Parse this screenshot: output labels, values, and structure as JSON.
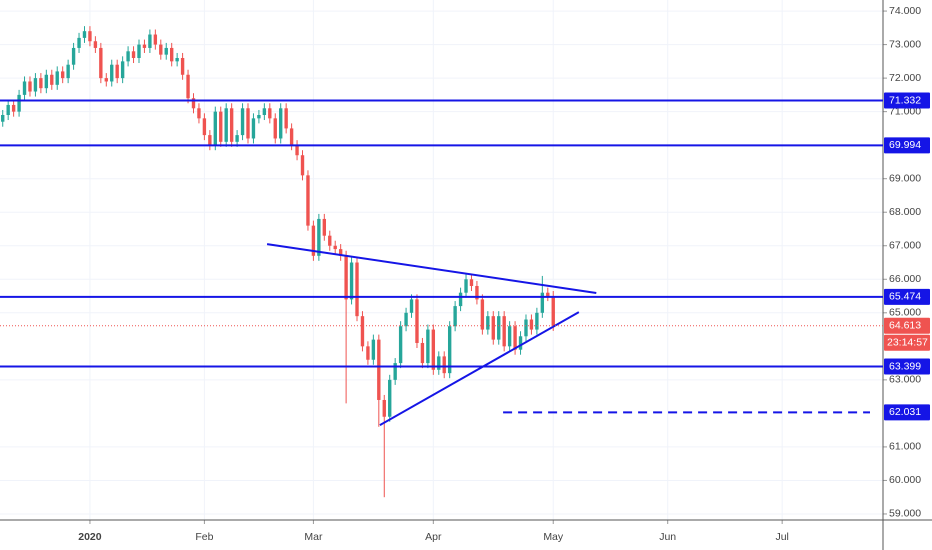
{
  "chart_data": {
    "type": "candlestick",
    "up_color": "#26a69a",
    "down_color": "#ef5350",
    "line_color": "#1515e6",
    "xlim": [
      -0.5,
      161.5
    ],
    "ylim": [
      58.82,
      74.33
    ],
    "xticks": [
      {
        "value": 16,
        "label": "2020"
      },
      {
        "value": 37,
        "label": "Feb"
      },
      {
        "value": 57,
        "label": "Mar"
      },
      {
        "value": 79,
        "label": "Apr"
      },
      {
        "value": 101,
        "label": "May"
      },
      {
        "value": 122,
        "label": "Jun"
      },
      {
        "value": 143,
        "label": "Jul"
      }
    ],
    "yticks": [
      {
        "value": 74,
        "label": "74.000"
      },
      {
        "value": 73,
        "label": "73.000"
      },
      {
        "value": 72,
        "label": "72.000"
      },
      {
        "value": 71,
        "label": "71.000"
      },
      {
        "value": 69,
        "label": "69.000"
      },
      {
        "value": 68,
        "label": "68.000"
      },
      {
        "value": 67,
        "label": "67.000"
      },
      {
        "value": 66,
        "label": "66.000"
      },
      {
        "value": 65,
        "label": "65.000"
      },
      {
        "value": 63,
        "label": "63.000"
      },
      {
        "value": 61,
        "label": "61.000"
      },
      {
        "value": 60,
        "label": "60.000"
      },
      {
        "value": 59,
        "label": "59.000"
      }
    ],
    "grid": true,
    "ohlc": [
      [
        70.7,
        71.05,
        70.55,
        70.9
      ],
      [
        70.9,
        71.35,
        70.75,
        71.2
      ],
      [
        71.2,
        71.35,
        70.85,
        71.0
      ],
      [
        71.0,
        71.65,
        70.85,
        71.5
      ],
      [
        71.5,
        72.05,
        71.35,
        71.9
      ],
      [
        71.9,
        72.05,
        71.45,
        71.6
      ],
      [
        71.6,
        72.15,
        71.45,
        72.0
      ],
      [
        72.0,
        72.15,
        71.55,
        71.7
      ],
      [
        71.7,
        72.25,
        71.55,
        72.1
      ],
      [
        72.1,
        72.25,
        71.65,
        71.8
      ],
      [
        71.8,
        72.35,
        71.65,
        72.2
      ],
      [
        72.2,
        72.35,
        71.85,
        72.0
      ],
      [
        72.0,
        72.55,
        71.85,
        72.4
      ],
      [
        72.4,
        73.05,
        72.25,
        72.9
      ],
      [
        72.9,
        73.35,
        72.75,
        73.2
      ],
      [
        73.2,
        73.55,
        73.05,
        73.4
      ],
      [
        73.4,
        73.55,
        72.95,
        73.1
      ],
      [
        73.1,
        73.25,
        72.75,
        72.9
      ],
      [
        72.9,
        73.05,
        71.85,
        72.0
      ],
      [
        72.0,
        72.15,
        71.75,
        71.9
      ],
      [
        71.9,
        72.55,
        71.75,
        72.4
      ],
      [
        72.4,
        72.55,
        71.85,
        72.0
      ],
      [
        72.0,
        72.65,
        71.85,
        72.5
      ],
      [
        72.5,
        72.95,
        72.35,
        72.8
      ],
      [
        72.8,
        72.95,
        72.45,
        72.6
      ],
      [
        72.6,
        73.15,
        72.45,
        73.0
      ],
      [
        73.0,
        73.15,
        72.75,
        72.9
      ],
      [
        72.9,
        73.45,
        72.75,
        73.3
      ],
      [
        73.3,
        73.45,
        72.85,
        73.0
      ],
      [
        73.0,
        73.15,
        72.55,
        72.7
      ],
      [
        72.7,
        73.05,
        72.55,
        72.9
      ],
      [
        72.9,
        73.05,
        72.35,
        72.5
      ],
      [
        72.5,
        72.75,
        72.35,
        72.6
      ],
      [
        72.6,
        72.75,
        71.95,
        72.1
      ],
      [
        72.1,
        72.25,
        71.25,
        71.4
      ],
      [
        71.4,
        71.55,
        70.95,
        71.1
      ],
      [
        71.1,
        71.25,
        70.65,
        70.8
      ],
      [
        70.8,
        70.95,
        70.15,
        70.3
      ],
      [
        70.3,
        70.45,
        69.85,
        70.0
      ],
      [
        70.0,
        71.15,
        69.85,
        71.0
      ],
      [
        71.0,
        71.15,
        69.95,
        70.1
      ],
      [
        70.1,
        71.25,
        69.95,
        71.1
      ],
      [
        71.1,
        71.25,
        69.95,
        70.1
      ],
      [
        70.1,
        70.45,
        69.95,
        70.3
      ],
      [
        70.3,
        71.25,
        70.15,
        71.1
      ],
      [
        71.1,
        71.25,
        70.05,
        70.2
      ],
      [
        70.2,
        70.95,
        70.05,
        70.8
      ],
      [
        70.8,
        71.05,
        70.65,
        70.9
      ],
      [
        70.9,
        71.25,
        70.75,
        71.1
      ],
      [
        71.1,
        71.25,
        70.65,
        70.8
      ],
      [
        70.8,
        70.95,
        70.05,
        70.2
      ],
      [
        70.2,
        71.25,
        70.05,
        71.1
      ],
      [
        71.1,
        71.25,
        70.35,
        70.5
      ],
      [
        70.5,
        70.65,
        69.85,
        70.0
      ],
      [
        70.0,
        70.15,
        69.55,
        69.7
      ],
      [
        69.7,
        69.85,
        68.95,
        69.1
      ],
      [
        69.1,
        69.25,
        67.45,
        67.6
      ],
      [
        67.6,
        67.75,
        66.55,
        66.7
      ],
      [
        66.7,
        67.95,
        66.55,
        67.8
      ],
      [
        67.8,
        67.95,
        67.15,
        67.3
      ],
      [
        67.3,
        67.45,
        66.85,
        67.0
      ],
      [
        67.0,
        67.15,
        66.75,
        66.9
      ],
      [
        66.9,
        67.05,
        66.55,
        66.7
      ],
      [
        66.7,
        66.85,
        62.3,
        65.4
      ],
      [
        65.4,
        66.65,
        65.25,
        66.5
      ],
      [
        66.5,
        66.65,
        64.75,
        64.9
      ],
      [
        64.9,
        65.05,
        63.85,
        64.0
      ],
      [
        64.0,
        64.15,
        63.45,
        63.6
      ],
      [
        63.6,
        64.35,
        63.45,
        64.2
      ],
      [
        64.2,
        64.35,
        61.6,
        62.4
      ],
      [
        62.4,
        62.55,
        59.5,
        61.9
      ],
      [
        61.9,
        63.15,
        61.75,
        63.0
      ],
      [
        63.0,
        63.65,
        62.85,
        63.5
      ],
      [
        63.5,
        64.75,
        63.35,
        64.6
      ],
      [
        64.6,
        65.15,
        64.45,
        65.0
      ],
      [
        65.0,
        65.55,
        64.85,
        65.4
      ],
      [
        65.4,
        65.55,
        63.95,
        64.1
      ],
      [
        64.1,
        64.25,
        63.35,
        63.5
      ],
      [
        63.5,
        64.65,
        63.35,
        64.5
      ],
      [
        64.5,
        64.65,
        63.15,
        63.3
      ],
      [
        63.3,
        63.85,
        63.15,
        63.7
      ],
      [
        63.7,
        63.85,
        63.05,
        63.2
      ],
      [
        63.2,
        64.75,
        63.05,
        64.6
      ],
      [
        64.6,
        65.35,
        64.45,
        65.2
      ],
      [
        65.2,
        65.75,
        65.05,
        65.6
      ],
      [
        65.6,
        66.15,
        65.45,
        66.0
      ],
      [
        66.0,
        66.15,
        65.65,
        65.8
      ],
      [
        65.8,
        65.95,
        65.25,
        65.4
      ],
      [
        65.4,
        65.55,
        64.35,
        64.5
      ],
      [
        64.5,
        65.05,
        64.35,
        64.9
      ],
      [
        64.9,
        65.05,
        64.05,
        64.2
      ],
      [
        64.2,
        65.05,
        64.05,
        64.9
      ],
      [
        64.9,
        65.05,
        63.85,
        64.0
      ],
      [
        64.0,
        64.75,
        63.85,
        64.6
      ],
      [
        64.6,
        64.75,
        63.75,
        63.9
      ],
      [
        63.9,
        64.45,
        63.75,
        64.3
      ],
      [
        64.3,
        64.95,
        64.15,
        64.8
      ],
      [
        64.8,
        64.95,
        64.35,
        64.5
      ],
      [
        64.5,
        65.15,
        64.35,
        65.0
      ],
      [
        65.0,
        66.1,
        64.85,
        65.6
      ],
      [
        65.6,
        65.75,
        65.35,
        65.5
      ],
      [
        65.5,
        65.65,
        64.46,
        64.613
      ]
    ],
    "levels": [
      71.332,
      69.994,
      65.474,
      63.399
    ],
    "dashed_level": {
      "value": 62.031,
      "x_start": 91.8
    },
    "trendlines": [
      {
        "x": [
          48.5,
          108.9
        ],
        "y": [
          67.05,
          65.59
        ]
      },
      {
        "x": [
          69.2,
          105.7
        ],
        "y": [
          61.65,
          65.02
        ]
      }
    ],
    "last_price": 64.613,
    "countdown": "23:14:57"
  }
}
